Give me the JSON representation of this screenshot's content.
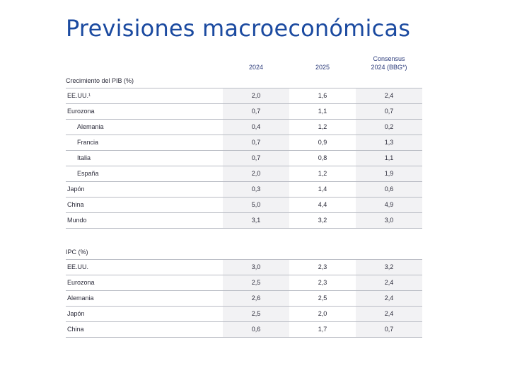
{
  "title": "Previsiones macroeconómicas",
  "columns": {
    "c1": "2024",
    "c2": "2025",
    "c3_line1": "Consensus",
    "c3_line2": "2024 (BBG*)"
  },
  "pib": {
    "label": "Crecimiento del PIB (%)",
    "rows": [
      {
        "name": "EE.UU.¹",
        "indent": false,
        "v2024": "2,0",
        "v2025": "1,6",
        "cons": "2,4"
      },
      {
        "name": "Eurozona",
        "indent": false,
        "v2024": "0,7",
        "v2025": "1,1",
        "cons": "0,7"
      },
      {
        "name": "Alemania",
        "indent": true,
        "v2024": "0,4",
        "v2025": "1,2",
        "cons": "0,2"
      },
      {
        "name": "Francia",
        "indent": true,
        "v2024": "0,7",
        "v2025": "0,9",
        "cons": "1,3"
      },
      {
        "name": "Italia",
        "indent": true,
        "v2024": "0,7",
        "v2025": "0,8",
        "cons": "1,1"
      },
      {
        "name": "España",
        "indent": true,
        "v2024": "2,0",
        "v2025": "1,2",
        "cons": "1,9"
      },
      {
        "name": "Japón",
        "indent": false,
        "v2024": "0,3",
        "v2025": "1,4",
        "cons": "0,6"
      },
      {
        "name": "China",
        "indent": false,
        "v2024": "5,0",
        "v2025": "4,4",
        "cons": "4,9"
      },
      {
        "name": "Mundo",
        "indent": false,
        "v2024": "3,1",
        "v2025": "3,2",
        "cons": "3,0"
      }
    ]
  },
  "ipc": {
    "label": "IPC (%)",
    "rows": [
      {
        "name": "EE.UU.",
        "indent": false,
        "v2024": "3,0",
        "v2025": "2,3",
        "cons": "3,2"
      },
      {
        "name": "Eurozona",
        "indent": false,
        "v2024": "2,5",
        "v2025": "2,3",
        "cons": "2,4"
      },
      {
        "name": "Alemania",
        "indent": false,
        "v2024": "2,6",
        "v2025": "2,5",
        "cons": "2,4"
      },
      {
        "name": "Japón",
        "indent": false,
        "v2024": "2,5",
        "v2025": "2,0",
        "cons": "2,4"
      },
      {
        "name": "China",
        "indent": false,
        "v2024": "0,6",
        "v2025": "1,7",
        "cons": "0,7"
      }
    ]
  },
  "colors": {
    "title": "#1b4aa0",
    "header": "#2a3a7a",
    "shade": "#f2f2f4",
    "rule": "#b9bcc4"
  }
}
